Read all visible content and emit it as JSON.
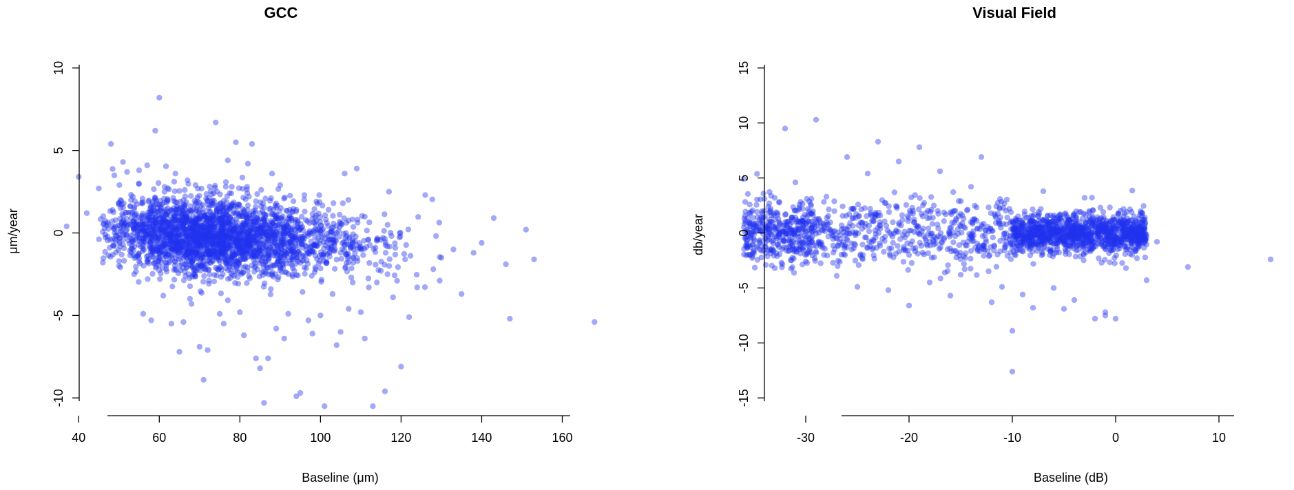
{
  "chart_data": [
    {
      "type": "scatter",
      "title": "GCC",
      "xlabel": "Baseline (μm)",
      "ylabel": "μm/year",
      "xlim": [
        35,
        170
      ],
      "ylim": [
        -10.2,
        10.2
      ],
      "xticks": [
        40,
        60,
        80,
        100,
        120,
        140,
        160
      ],
      "yticks": [
        -10,
        -5,
        0,
        5,
        10
      ],
      "grid": false,
      "legend": "none",
      "color": "#2233ee",
      "points": [
        [
          37,
          0.4
        ],
        [
          40,
          3.4
        ],
        [
          42,
          1.2
        ],
        [
          45,
          2.7
        ],
        [
          46,
          -1.8
        ],
        [
          48,
          5.4
        ],
        [
          50,
          -2.0
        ],
        [
          51,
          4.3
        ],
        [
          52,
          3.7
        ],
        [
          53,
          2.0
        ],
        [
          55,
          3.8
        ],
        [
          56,
          -4.9
        ],
        [
          57,
          4.1
        ],
        [
          58,
          -5.3
        ],
        [
          59,
          6.2
        ],
        [
          60,
          8.2
        ],
        [
          61,
          -3.8
        ],
        [
          62,
          1.2
        ],
        [
          63,
          -5.5
        ],
        [
          64,
          3.6
        ],
        [
          65,
          -7.2
        ],
        [
          66,
          -5.4
        ],
        [
          67,
          3.2
        ],
        [
          68,
          -4.3
        ],
        [
          69,
          2.9
        ],
        [
          70,
          -6.9
        ],
        [
          71,
          -8.9
        ],
        [
          72,
          -7.1
        ],
        [
          73,
          1.9
        ],
        [
          74,
          6.7
        ],
        [
          75,
          -4.9
        ],
        [
          76,
          -5.5
        ],
        [
          77,
          4.4
        ],
        [
          78,
          2.8
        ],
        [
          79,
          5.5
        ],
        [
          80,
          -4.8
        ],
        [
          81,
          -6.2
        ],
        [
          82,
          4.2
        ],
        [
          83,
          5.4
        ],
        [
          84,
          -7.6
        ],
        [
          85,
          -8.2
        ],
        [
          86,
          -10.3
        ],
        [
          87,
          -7.6
        ],
        [
          88,
          3.6
        ],
        [
          89,
          -5.8
        ],
        [
          90,
          2.9
        ],
        [
          91,
          -6.4
        ],
        [
          92,
          -4.9
        ],
        [
          93,
          1.3
        ],
        [
          94,
          -9.9
        ],
        [
          95,
          -9.7
        ],
        [
          96,
          2.3
        ],
        [
          97,
          -5.3
        ],
        [
          98,
          -6.1
        ],
        [
          99,
          1.9
        ],
        [
          100,
          -5.0
        ],
        [
          101,
          -10.5
        ],
        [
          102,
          1.4
        ],
        [
          103,
          -3.7
        ],
        [
          104,
          -6.8
        ],
        [
          105,
          -6.0
        ],
        [
          106,
          3.6
        ],
        [
          107,
          -4.6
        ],
        [
          108,
          -3.0
        ],
        [
          109,
          3.9
        ],
        [
          110,
          -4.8
        ],
        [
          111,
          -6.4
        ],
        [
          112,
          -3.3
        ],
        [
          113,
          -10.5
        ],
        [
          114,
          -3.0
        ],
        [
          115,
          -2.3
        ],
        [
          116,
          -9.6
        ],
        [
          117,
          2.5
        ],
        [
          118,
          -3.9
        ],
        [
          119,
          -2.9
        ],
        [
          120,
          -8.1
        ],
        [
          121,
          -1.6
        ],
        [
          122,
          -5.1
        ],
        [
          124,
          -3.3
        ],
        [
          126,
          2.3
        ],
        [
          128,
          -2.2
        ],
        [
          130,
          -1.5
        ],
        [
          133,
          -1.0
        ],
        [
          135,
          -3.7
        ],
        [
          138,
          -1.2
        ],
        [
          140,
          -0.6
        ],
        [
          143,
          0.9
        ],
        [
          146,
          -1.9
        ],
        [
          147,
          -5.2
        ],
        [
          151,
          0.2
        ],
        [
          153,
          -1.6
        ],
        [
          168,
          -5.4
        ]
      ]
    },
    {
      "type": "scatter",
      "title": "Visual Field",
      "xlabel": "Baseline (dB)",
      "ylabel": "db/year",
      "xlim": [
        -37,
        16
      ],
      "ylim": [
        -15.3,
        15.3
      ],
      "xticks": [
        -30,
        -20,
        -10,
        0,
        10
      ],
      "yticks": [
        -15,
        -10,
        -5,
        0,
        5,
        10,
        15
      ],
      "grid": false,
      "legend": "none",
      "color": "#2233ee",
      "points": [
        [
          -36,
          4.9
        ],
        [
          -35,
          -1.8
        ],
        [
          -33,
          3.2
        ],
        [
          -32,
          9.5
        ],
        [
          -31,
          4.6
        ],
        [
          -30,
          -2.6
        ],
        [
          -29,
          10.3
        ],
        [
          -28,
          3.3
        ],
        [
          -27,
          -3.9
        ],
        [
          -26,
          6.9
        ],
        [
          -25,
          -4.9
        ],
        [
          -24,
          5.4
        ],
        [
          -23,
          8.3
        ],
        [
          -22,
          -5.2
        ],
        [
          -21,
          6.5
        ],
        [
          -20,
          -6.6
        ],
        [
          -19,
          7.8
        ],
        [
          -18,
          -4.5
        ],
        [
          -17,
          5.6
        ],
        [
          -16,
          -5.7
        ],
        [
          -15,
          -3.8
        ],
        [
          -14,
          4.2
        ],
        [
          -13,
          6.9
        ],
        [
          -12,
          -6.3
        ],
        [
          -11,
          -4.9
        ],
        [
          -10,
          -8.9
        ],
        [
          -10,
          -12.6
        ],
        [
          -9,
          -5.6
        ],
        [
          -8,
          -6.8
        ],
        [
          -7,
          3.8
        ],
        [
          -6,
          -5.0
        ],
        [
          -5,
          -6.9
        ],
        [
          -4,
          -6.1
        ],
        [
          -3,
          3.2
        ],
        [
          -2,
          -7.8
        ],
        [
          -1,
          -7.2
        ],
        [
          -1,
          -7.5
        ],
        [
          0,
          -7.8
        ],
        [
          1,
          -3.2
        ],
        [
          3,
          -4.3
        ],
        [
          4,
          -0.8
        ],
        [
          7,
          -3.1
        ],
        [
          15,
          -2.4
        ]
      ]
    }
  ]
}
